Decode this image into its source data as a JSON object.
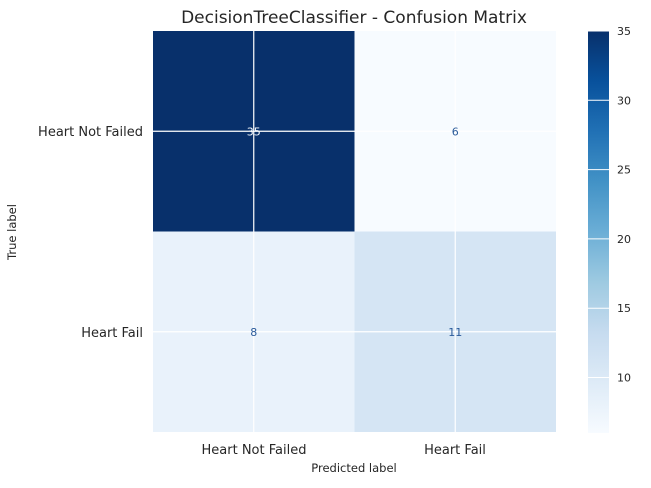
{
  "chart_data": {
    "type": "heatmap",
    "title": "DecisionTreeClassifier - Confusion Matrix",
    "xlabel": "Predicted label",
    "ylabel": "True label",
    "x_categories": [
      "Heart Not Failed",
      "Heart Fail"
    ],
    "y_categories": [
      "Heart Not Failed",
      "Heart Fail"
    ],
    "values": [
      [
        35,
        6
      ],
      [
        8,
        11
      ]
    ],
    "cell_labels": [
      [
        "35",
        "6"
      ],
      [
        "8",
        "11"
      ]
    ],
    "colormap": "Blues",
    "colorbar": {
      "range": [
        6,
        35
      ],
      "ticks": [
        10,
        15,
        20,
        25,
        30,
        35
      ],
      "tick_labels": [
        "10",
        "15",
        "20",
        "25",
        "30",
        "35"
      ]
    },
    "grid": true,
    "colors": {
      "high": "#08306b",
      "low": "#f7fbff",
      "grid": "#ffffff",
      "text_dark_cell": "#f7fbff",
      "text_light_cell": "#2a5a9a"
    }
  }
}
